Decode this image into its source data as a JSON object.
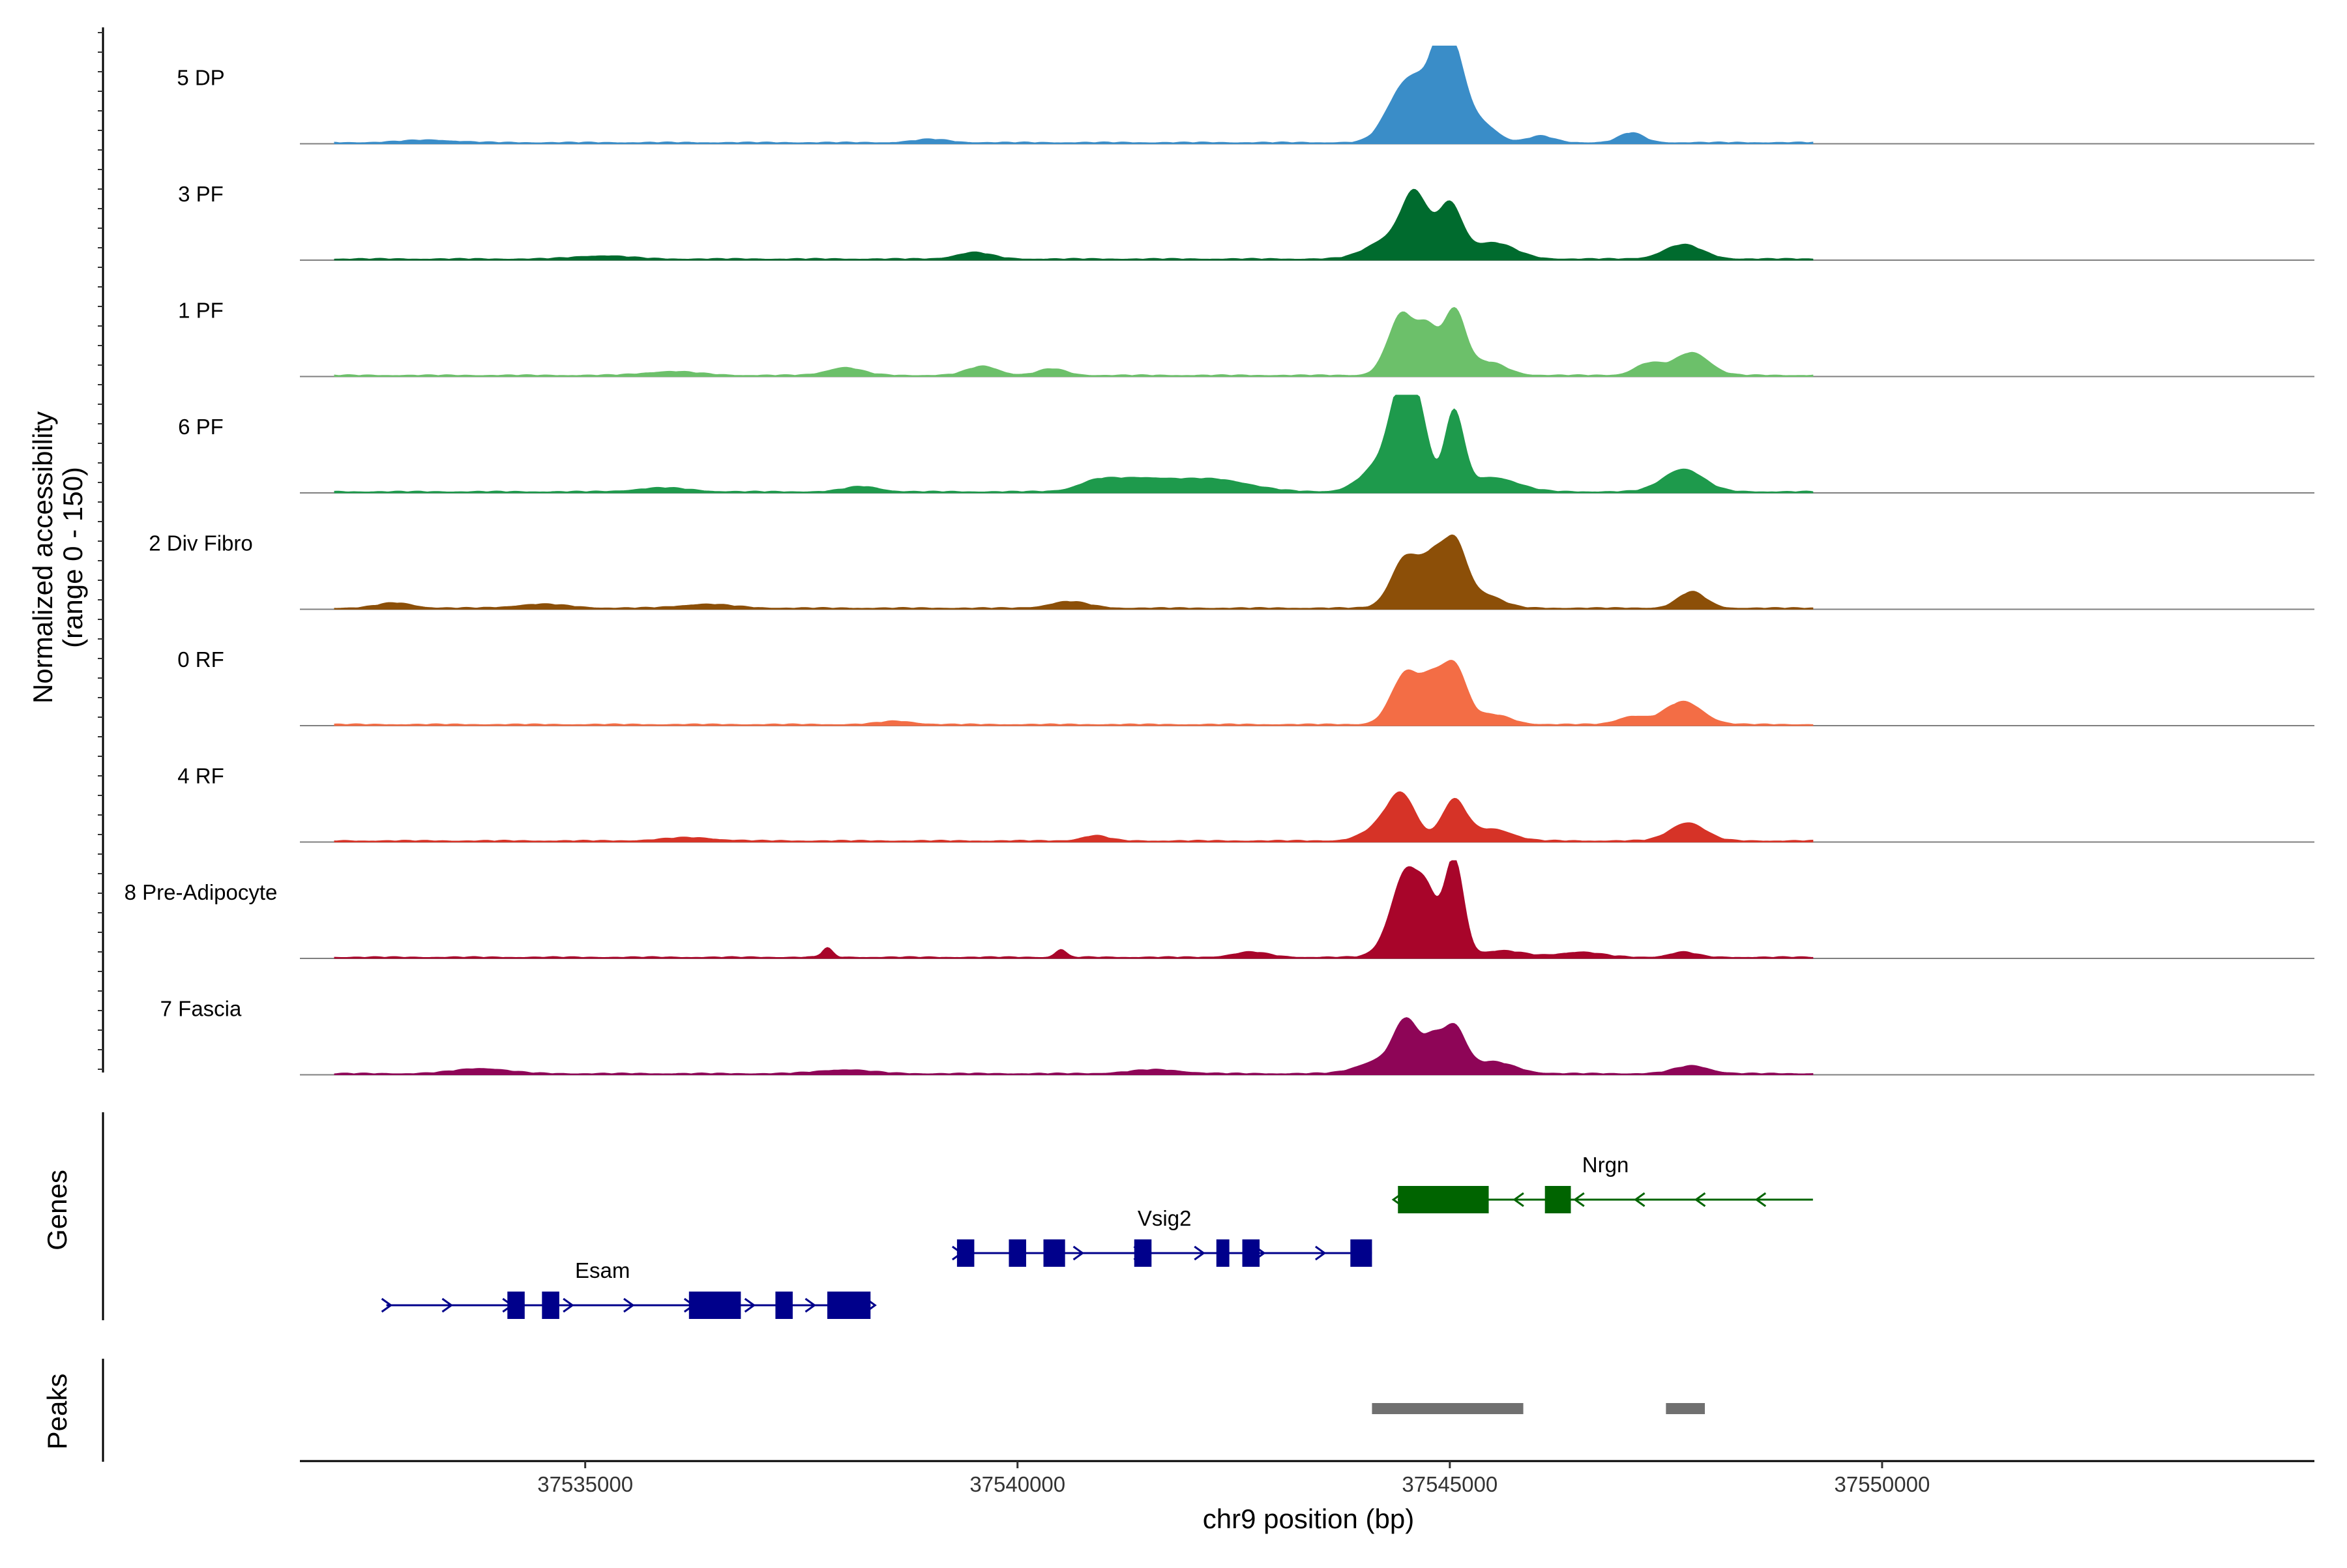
{
  "chart_data": {
    "type": "area",
    "title": "",
    "ylabel": [
      "Normalized accessibility",
      "(range 0 - 150)"
    ],
    "ylim": [
      0,
      150
    ],
    "xlabel": "chr9 position (bp)",
    "xlim": [
      37531700,
      37555000
    ],
    "xticks": [
      37535000,
      37540000,
      37545000,
      37550000
    ],
    "xtick_labels": [
      "37535000",
      "37540000",
      "37545000",
      "37550000"
    ],
    "tracks": [
      {
        "name": "5 DP",
        "color": "#3a8dc8",
        "peaks": [
          [
            37544400,
            55,
            180
          ],
          [
            37544700,
            85,
            200
          ],
          [
            37545050,
            120,
            150
          ],
          [
            37544900,
            70,
            100
          ],
          [
            37545400,
            25,
            160
          ],
          [
            37546050,
            10,
            150
          ],
          [
            37547100,
            15,
            140
          ],
          [
            37539000,
            5,
            200
          ],
          [
            37533200,
            4,
            300
          ]
        ]
      },
      {
        "name": "3 PF",
        "color": "#006b2e",
        "peaks": [
          [
            37544600,
            90,
            150
          ],
          [
            37545000,
            82,
            140
          ],
          [
            37544300,
            30,
            250
          ],
          [
            37545500,
            25,
            250
          ],
          [
            37547700,
            22,
            220
          ],
          [
            37539500,
            10,
            200
          ],
          [
            37535200,
            5,
            300
          ]
        ]
      },
      {
        "name": "1 PF",
        "color": "#6cc06a",
        "peaks": [
          [
            37544450,
            95,
            160
          ],
          [
            37545050,
            100,
            130
          ],
          [
            37544750,
            60,
            110
          ],
          [
            37545450,
            20,
            200
          ],
          [
            37547300,
            18,
            160
          ],
          [
            37547800,
            35,
            200
          ],
          [
            37538000,
            12,
            200
          ],
          [
            37539600,
            14,
            180
          ],
          [
            37540400,
            10,
            160
          ],
          [
            37536000,
            6,
            300
          ]
        ]
      },
      {
        "name": "6 PF",
        "color": "#1e9a4c",
        "peaks": [
          [
            37544450,
            140,
            140
          ],
          [
            37545050,
            120,
            110
          ],
          [
            37544650,
            90,
            120
          ],
          [
            37544200,
            40,
            220
          ],
          [
            37545500,
            22,
            280
          ],
          [
            37547700,
            35,
            230
          ],
          [
            37541400,
            20,
            400
          ],
          [
            37542300,
            18,
            400
          ],
          [
            37540900,
            10,
            200
          ],
          [
            37538200,
            8,
            200
          ],
          [
            37535900,
            6,
            300
          ]
        ]
      },
      {
        "name": "2 Div Fibro",
        "color": "#8c4f08",
        "peaks": [
          [
            37544500,
            80,
            170
          ],
          [
            37545050,
            100,
            140
          ],
          [
            37544800,
            55,
            120
          ],
          [
            37545400,
            20,
            200
          ],
          [
            37547800,
            25,
            160
          ],
          [
            37540600,
            10,
            220
          ],
          [
            37536400,
            6,
            300
          ],
          [
            37534500,
            6,
            300
          ],
          [
            37532800,
            8,
            200
          ]
        ]
      },
      {
        "name": "0 RF",
        "color": "#f36d45",
        "peaks": [
          [
            37544500,
            80,
            170
          ],
          [
            37545050,
            90,
            140
          ],
          [
            37544800,
            50,
            120
          ],
          [
            37545500,
            15,
            200
          ],
          [
            37547700,
            35,
            220
          ],
          [
            37547100,
            12,
            160
          ],
          [
            37538600,
            5,
            200
          ]
        ]
      },
      {
        "name": "4 RF",
        "color": "#d63327",
        "peaks": [
          [
            37544450,
            65,
            160
          ],
          [
            37545050,
            62,
            140
          ],
          [
            37544200,
            20,
            200
          ],
          [
            37545500,
            18,
            220
          ],
          [
            37547750,
            28,
            200
          ],
          [
            37540900,
            8,
            150
          ],
          [
            37536200,
            5,
            300
          ]
        ]
      },
      {
        "name": "8 Pre-Adipocyte",
        "color": "#a8052a",
        "peaks": [
          [
            37544500,
            120,
            150
          ],
          [
            37545050,
            150,
            110
          ],
          [
            37544750,
            80,
            120
          ],
          [
            37544300,
            20,
            150
          ],
          [
            37545600,
            10,
            250
          ],
          [
            37537800,
            14,
            60
          ],
          [
            37540500,
            12,
            60
          ],
          [
            37542700,
            8,
            200
          ],
          [
            37547700,
            8,
            150
          ],
          [
            37546500,
            8,
            250
          ]
        ]
      },
      {
        "name": "7 Fascia",
        "color": "#8e0557",
        "peaks": [
          [
            37544500,
            75,
            140
          ],
          [
            37545050,
            70,
            130
          ],
          [
            37544800,
            45,
            110
          ],
          [
            37544200,
            20,
            250
          ],
          [
            37545500,
            18,
            250
          ],
          [
            37547800,
            12,
            200
          ],
          [
            37533800,
            8,
            300
          ],
          [
            37538000,
            6,
            300
          ],
          [
            37541600,
            6,
            300
          ]
        ]
      }
    ],
    "genes": [
      {
        "name": "Esam",
        "strand": "+",
        "color": "#00008b",
        "start": 37532700,
        "end": 37538300,
        "exons": [
          [
            37534100,
            37534300
          ],
          [
            37534500,
            37534700
          ],
          [
            37536200,
            37536800
          ],
          [
            37537200,
            37537400
          ],
          [
            37537800,
            37538300
          ]
        ]
      },
      {
        "name": "Vsig2",
        "strand": "+",
        "color": "#00008b",
        "start": 37539300,
        "end": 37544100,
        "exons": [
          [
            37539300,
            37539500
          ],
          [
            37539900,
            37540100
          ],
          [
            37540300,
            37540550
          ],
          [
            37541350,
            37541550
          ],
          [
            37542300,
            37542450
          ],
          [
            37542600,
            37542800
          ],
          [
            37543850,
            37544100
          ]
        ]
      },
      {
        "name": "Nrgn",
        "strand": "-",
        "color": "#006400",
        "start": 37544400,
        "end": 37549200,
        "exons": [
          [
            37544400,
            37545450
          ],
          [
            37546100,
            37546400
          ]
        ]
      }
    ],
    "peak_regions": [
      [
        37544100,
        37545850
      ],
      [
        37547500,
        37547950
      ]
    ],
    "panel_labels": {
      "genes": "Genes",
      "peaks": "Peaks"
    }
  }
}
